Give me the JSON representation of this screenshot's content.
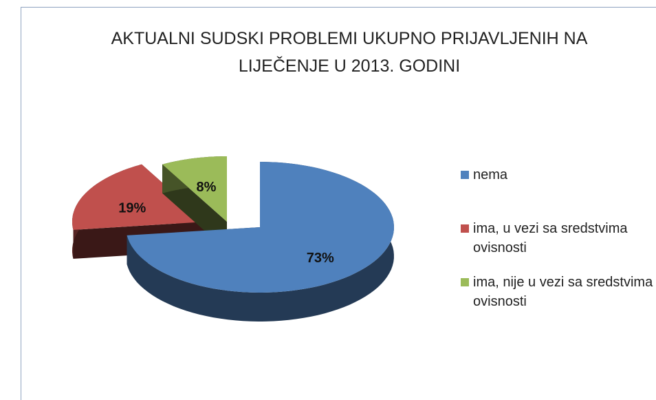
{
  "chart_data": {
    "type": "pie",
    "title": "AKTUALNI SUDSKI PROBLEMI UKUPNO PRIJAVLJENIH NA LIJEČENJE U 2013. GODINI",
    "categories": [
      "nema",
      "ima, u vezi sa sredstvima ovisnosti",
      "ima, nije u vezi sa sredstvima ovisnosti"
    ],
    "values": [
      73,
      19,
      8
    ],
    "value_labels": [
      "73%",
      "19%",
      "8%"
    ],
    "colors": [
      "#4f81bd",
      "#c0504d",
      "#9bbb59"
    ],
    "legend": "right"
  }
}
